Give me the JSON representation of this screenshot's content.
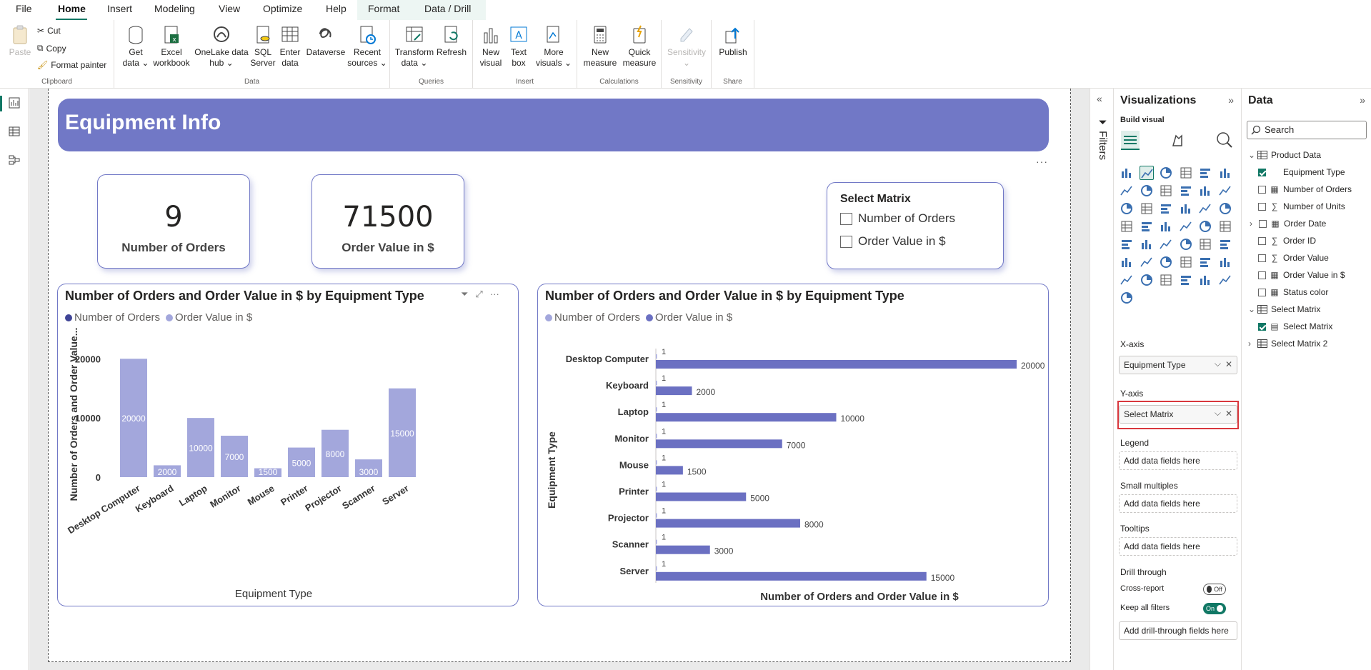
{
  "menu": {
    "tabs": [
      "File",
      "Home",
      "Insert",
      "Modeling",
      "View",
      "Optimize",
      "Help",
      "Format",
      "Data / Drill"
    ],
    "active": "Home"
  },
  "ribbon": {
    "clipboard": {
      "label": "Clipboard",
      "paste": "Paste",
      "cut": "Cut",
      "copy": "Copy",
      "format_painter": "Format painter"
    },
    "data": {
      "label": "Data",
      "buttons": [
        {
          "l1": "Get",
          "l2": "data ⌄"
        },
        {
          "l1": "Excel",
          "l2": "workbook"
        },
        {
          "l1": "OneLake data",
          "l2": "hub ⌄"
        },
        {
          "l1": "SQL",
          "l2": "Server"
        },
        {
          "l1": "Enter",
          "l2": "data"
        },
        {
          "l1": "Dataverse",
          "l2": ""
        },
        {
          "l1": "Recent",
          "l2": "sources ⌄"
        }
      ]
    },
    "queries": {
      "label": "Queries",
      "buttons": [
        {
          "l1": "Transform",
          "l2": "data ⌄"
        },
        {
          "l1": "Refresh",
          "l2": ""
        }
      ]
    },
    "insert": {
      "label": "Insert",
      "buttons": [
        {
          "l1": "New",
          "l2": "visual"
        },
        {
          "l1": "Text",
          "l2": "box"
        },
        {
          "l1": "More",
          "l2": "visuals ⌄"
        }
      ]
    },
    "calculations": {
      "label": "Calculations",
      "buttons": [
        {
          "l1": "New",
          "l2": "measure"
        },
        {
          "l1": "Quick",
          "l2": "measure"
        }
      ]
    },
    "sensitivity": {
      "label": "Sensitivity",
      "buttons": [
        {
          "l1": "Sensitivity",
          "l2": "⌄"
        }
      ]
    },
    "share": {
      "label": "Share",
      "buttons": [
        {
          "l1": "Publish",
          "l2": ""
        }
      ]
    }
  },
  "report": {
    "banner_title": "Equipment Info",
    "cards": [
      {
        "value": "9",
        "label": "Number of Orders"
      },
      {
        "value": "71500",
        "label": "Order Value in $"
      }
    ],
    "slicer": {
      "title": "Select Matrix",
      "options": [
        "Number of Orders",
        "Order Value in $"
      ]
    }
  },
  "chart_data": [
    {
      "type": "bar",
      "title": "Number of Orders and Order Value in $ by Equipment Type",
      "xlabel": "Equipment Type",
      "ylabel": "Number of Orders and Order Value...",
      "legend": [
        "Number of Orders",
        "Order Value in $"
      ],
      "legend_colors": [
        "#3f4496",
        "#a3a7dc"
      ],
      "categories": [
        "Desktop Computer",
        "Keyboard",
        "Laptop",
        "Monitor",
        "Mouse",
        "Printer",
        "Projector",
        "Scanner",
        "Server"
      ],
      "series": [
        {
          "name": "Number of Orders",
          "values": [
            1,
            1,
            1,
            1,
            1,
            1,
            1,
            1,
            1
          ]
        },
        {
          "name": "Order Value in $",
          "values": [
            20000,
            2000,
            10000,
            7000,
            1500,
            5000,
            8000,
            3000,
            15000
          ]
        }
      ],
      "yticks": [
        "0",
        "10000",
        "20000"
      ],
      "ylim": [
        0,
        21000
      ],
      "bar_color": "#a3a7dc",
      "grid": false
    },
    {
      "type": "bar",
      "orientation": "horizontal",
      "title": "Number of Orders and Order Value in $ by Equipment Type",
      "xlabel": "Number of Orders and Order Value in $",
      "ylabel": "Equipment Type",
      "legend": [
        "Number of Orders",
        "Order Value in $"
      ],
      "legend_colors": [
        "#a3a7dc",
        "#6b70c2"
      ],
      "categories": [
        "Desktop Computer",
        "Keyboard",
        "Laptop",
        "Monitor",
        "Mouse",
        "Printer",
        "Projector",
        "Scanner",
        "Server"
      ],
      "series": [
        {
          "name": "Number of Orders",
          "values": [
            1,
            1,
            1,
            1,
            1,
            1,
            1,
            1,
            1
          ]
        },
        {
          "name": "Order Value in $",
          "values": [
            20000,
            2000,
            10000,
            7000,
            1500,
            5000,
            8000,
            3000,
            15000
          ]
        }
      ],
      "xlim": [
        0,
        20000
      ],
      "bar_color": "#6b70c2",
      "grid": false
    }
  ],
  "filters_label": "Filters",
  "viz_pane": {
    "title": "Visualizations",
    "build_visual": "Build visual",
    "wells": [
      {
        "label": "X-axis",
        "value": "Equipment Type",
        "filled": true
      },
      {
        "label": "Y-axis",
        "value": "Select Matrix",
        "filled": true
      },
      {
        "label": "Legend",
        "value": "Add data fields here",
        "filled": false
      },
      {
        "label": "Small multiples",
        "value": "Add data fields here",
        "filled": false
      },
      {
        "label": "Tooltips",
        "value": "Add data fields here",
        "filled": false
      }
    ],
    "drill_through": {
      "label": "Drill through",
      "cross_report": "Cross-report",
      "cross_report_state": "Off",
      "keep_all_filters": "Keep all filters",
      "keep_all_filters_state": "On",
      "add_field": "Add drill-through fields here"
    },
    "accent": "#117865"
  },
  "data_pane": {
    "title": "Data",
    "search_placeholder": "Search",
    "tree": [
      {
        "label": "Product Data",
        "level": 0,
        "type": "table",
        "expanded": true
      },
      {
        "label": "Equipment Type",
        "level": 1,
        "type": "text",
        "checked": true
      },
      {
        "label": "Number of Orders",
        "level": 1,
        "type": "measure",
        "checked": false
      },
      {
        "label": "Number of Units",
        "level": 1,
        "type": "sum",
        "checked": false
      },
      {
        "label": "Order Date",
        "level": 1,
        "type": "date",
        "checked": false,
        "expandable": true
      },
      {
        "label": "Order ID",
        "level": 1,
        "type": "sum",
        "checked": false
      },
      {
        "label": "Order Value",
        "level": 1,
        "type": "sum",
        "checked": false
      },
      {
        "label": "Order Value in $",
        "level": 1,
        "type": "measure",
        "checked": false
      },
      {
        "label": "Status color",
        "level": 1,
        "type": "measure",
        "checked": false
      },
      {
        "label": "Select Matrix",
        "level": 0,
        "type": "table",
        "expanded": true
      },
      {
        "label": "Select Matrix",
        "level": 1,
        "type": "param",
        "checked": true
      },
      {
        "label": "Select Matrix 2",
        "level": 0,
        "type": "table",
        "expanded": false
      }
    ]
  }
}
